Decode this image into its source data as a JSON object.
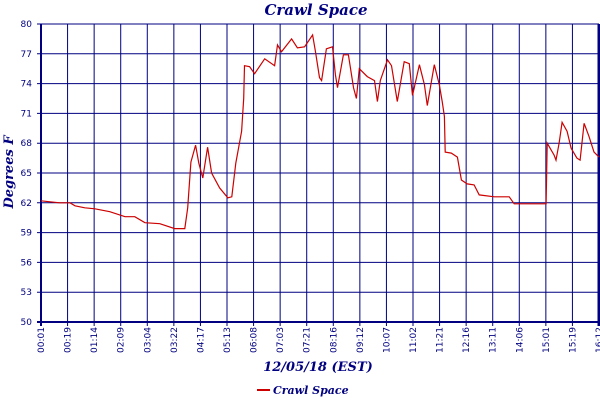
{
  "chart_data": {
    "type": "line",
    "title": "Crawl Space",
    "xlabel": "12/05/18 (EST)",
    "ylabel": "Degrees F",
    "ylim": [
      50,
      80
    ],
    "yticks": [
      "50",
      "53",
      "56",
      "59",
      "62",
      "65",
      "68",
      "71",
      "74",
      "77",
      "80"
    ],
    "categories": [
      "00:01",
      "00:19",
      "01:14",
      "02:09",
      "03:04",
      "03:22",
      "04:17",
      "05:13",
      "06:08",
      "07:03",
      "07:21",
      "08:16",
      "09:12",
      "10:07",
      "11:02",
      "11:21",
      "12:16",
      "13:11",
      "14:06",
      "15:01",
      "15:19",
      "16:12"
    ],
    "grid": true,
    "legend": "bottom",
    "colors": {
      "line": "#cc0000",
      "grid": "#000080",
      "text": "#000080"
    },
    "series": [
      {
        "name": "Crawl Space",
        "points": [
          [
            0,
            62.2
          ],
          [
            0.34,
            62.1
          ],
          [
            0.71,
            62.0
          ],
          [
            1.09,
            62.0
          ],
          [
            1.28,
            61.7
          ],
          [
            1.65,
            61.5
          ],
          [
            2.03,
            61.4
          ],
          [
            2.59,
            61.1
          ],
          [
            3.16,
            60.6
          ],
          [
            3.53,
            60.6
          ],
          [
            3.91,
            60.0
          ],
          [
            4.47,
            59.9
          ],
          [
            5.03,
            59.4
          ],
          [
            5.41,
            59.4
          ],
          [
            5.52,
            61.5
          ],
          [
            5.64,
            66.1
          ],
          [
            5.82,
            67.8
          ],
          [
            5.94,
            66.0
          ],
          [
            6.09,
            64.5
          ],
          [
            6.27,
            67.6
          ],
          [
            6.42,
            65.0
          ],
          [
            6.72,
            63.5
          ],
          [
            7.03,
            62.5
          ],
          [
            7.18,
            62.6
          ],
          [
            7.33,
            66.0
          ],
          [
            7.48,
            68.2
          ],
          [
            7.55,
            69.2
          ],
          [
            7.63,
            72.5
          ],
          [
            7.66,
            75.8
          ],
          [
            7.85,
            75.7
          ],
          [
            8.04,
            75.0
          ],
          [
            8.42,
            76.5
          ],
          [
            8.79,
            75.8
          ],
          [
            8.9,
            77.9
          ],
          [
            9.05,
            77.2
          ],
          [
            9.43,
            78.5
          ],
          [
            9.65,
            77.6
          ],
          [
            9.92,
            77.7
          ],
          [
            10.22,
            78.9
          ],
          [
            10.33,
            77.2
          ],
          [
            10.48,
            74.6
          ],
          [
            10.56,
            74.3
          ],
          [
            10.74,
            77.5
          ],
          [
            10.97,
            77.7
          ],
          [
            11.08,
            74.9
          ],
          [
            11.16,
            73.6
          ],
          [
            11.38,
            76.9
          ],
          [
            11.57,
            76.9
          ],
          [
            11.76,
            73.6
          ],
          [
            11.87,
            72.5
          ],
          [
            11.98,
            75.5
          ],
          [
            12.28,
            74.7
          ],
          [
            12.55,
            74.3
          ],
          [
            12.66,
            72.2
          ],
          [
            12.77,
            74.3
          ],
          [
            13.04,
            76.4
          ],
          [
            13.19,
            75.8
          ],
          [
            13.41,
            72.2
          ],
          [
            13.67,
            76.2
          ],
          [
            13.86,
            76.0
          ],
          [
            13.98,
            72.8
          ],
          [
            14.24,
            75.9
          ],
          [
            14.43,
            73.9
          ],
          [
            14.54,
            71.8
          ],
          [
            14.8,
            75.9
          ],
          [
            14.99,
            73.9
          ],
          [
            15.1,
            72.2
          ],
          [
            15.18,
            70.7
          ],
          [
            15.21,
            67.1
          ],
          [
            15.44,
            67.0
          ],
          [
            15.67,
            66.6
          ],
          [
            15.82,
            64.3
          ],
          [
            16.04,
            63.9
          ],
          [
            16.3,
            63.8
          ],
          [
            16.49,
            62.8
          ],
          [
            17.06,
            62.6
          ],
          [
            17.62,
            62.6
          ],
          [
            17.81,
            61.9
          ],
          [
            18.56,
            61.9
          ],
          [
            19.01,
            61.9
          ],
          [
            19.05,
            68.0
          ],
          [
            19.31,
            66.8
          ],
          [
            19.38,
            66.3
          ],
          [
            19.5,
            68.0
          ],
          [
            19.61,
            70.1
          ],
          [
            19.8,
            69.2
          ],
          [
            19.95,
            67.5
          ],
          [
            20.17,
            66.5
          ],
          [
            20.29,
            66.3
          ],
          [
            20.44,
            70.0
          ],
          [
            20.62,
            68.7
          ],
          [
            20.81,
            67.1
          ],
          [
            21.0,
            66.6
          ]
        ]
      }
    ]
  }
}
